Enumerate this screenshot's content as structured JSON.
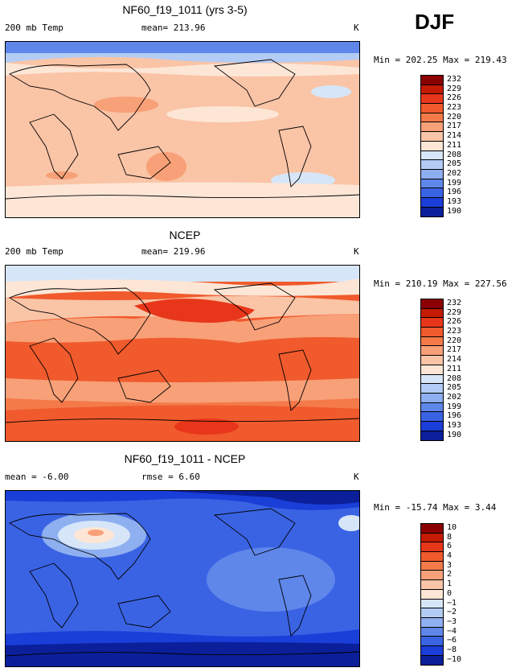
{
  "season": "DJF",
  "panels": [
    {
      "title": "NF60_f19_1011 (yrs 3-5)",
      "left_label": "200 mb Temp",
      "center_label": "mean= 213.96",
      "unit": "K",
      "min_max": "Min = 202.25 Max = 219.43",
      "levels": [
        "232",
        "229",
        "226",
        "223",
        "220",
        "217",
        "214",
        "211",
        "208",
        "205",
        "202",
        "199",
        "196",
        "193",
        "190"
      ],
      "colors": [
        "#8b0000",
        "#c41a00",
        "#e8361a",
        "#f05a2c",
        "#f47a4a",
        "#f8a078",
        "#fac4a6",
        "#fde6d6",
        "#d6e6f8",
        "#b3ccf5",
        "#8eaff0",
        "#5f87ea",
        "#3a63e4",
        "#1a3ed8",
        "#0a1f99"
      ]
    },
    {
      "title": "NCEP",
      "left_label": "200 mb Temp",
      "center_label": "mean= 219.96",
      "unit": "K",
      "min_max": "Min = 210.19 Max = 227.56",
      "levels": [
        "232",
        "229",
        "226",
        "223",
        "220",
        "217",
        "214",
        "211",
        "208",
        "205",
        "202",
        "199",
        "196",
        "193",
        "190"
      ],
      "colors": [
        "#8b0000",
        "#c41a00",
        "#e8361a",
        "#f05a2c",
        "#f47a4a",
        "#f8a078",
        "#fac4a6",
        "#fde6d6",
        "#d6e6f8",
        "#b3ccf5",
        "#8eaff0",
        "#5f87ea",
        "#3a63e4",
        "#1a3ed8",
        "#0a1f99"
      ]
    },
    {
      "title": "NF60_f19_1011 - NCEP",
      "left_label": "mean =   -6.00",
      "center_label": "rmse =    6.60",
      "unit": "K",
      "min_max": "Min = -15.74 Max =    3.44",
      "levels": [
        "10",
        "8",
        "6",
        "4",
        "3",
        "2",
        "1",
        "0",
        "−1",
        "−2",
        "−3",
        "−4",
        "−6",
        "−8",
        "−10"
      ],
      "colors": [
        "#8b0000",
        "#c41a00",
        "#e8361a",
        "#f05a2c",
        "#f47a4a",
        "#f8a078",
        "#fac4a6",
        "#fde6d6",
        "#d6e6f8",
        "#b3ccf5",
        "#8eaff0",
        "#5f87ea",
        "#3a63e4",
        "#1a3ed8",
        "#0a1f99"
      ]
    }
  ]
}
